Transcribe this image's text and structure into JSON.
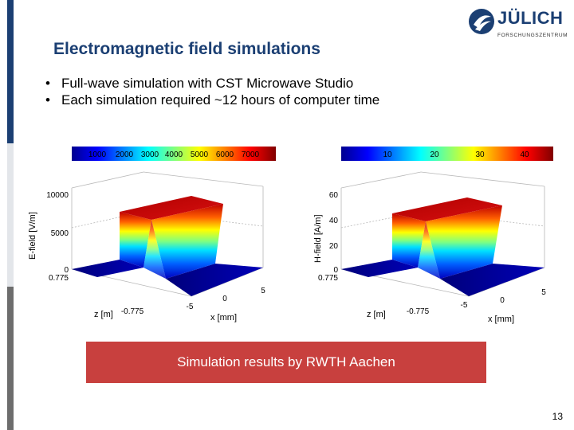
{
  "slide": {
    "title": "Electromagnetic field simulations",
    "bullets": [
      "Full-wave simulation with CST Microwave Studio",
      "Each simulation required ~12 hours of computer time"
    ],
    "banner": "Simulation results by RWTH Aachen",
    "page_number": "13"
  },
  "logo": {
    "name": "JÜLICH",
    "subtitle": "FORSCHUNGSZENTRUM"
  },
  "plots": [
    {
      "colorbar_ticks": [
        "1000",
        "2000",
        "3000",
        "4000",
        "5000",
        "6000",
        "7000"
      ],
      "ylabel": "E-field [V/m]",
      "y_ticks": [
        "10000",
        "5000",
        "0"
      ],
      "z_label": "z [m]",
      "z_ticks": [
        "0.775",
        "-0.775"
      ],
      "x_label": "x [mm]",
      "x_ticks": [
        "-5",
        "0",
        "5"
      ]
    },
    {
      "colorbar_ticks": [
        "10",
        "20",
        "30",
        "40"
      ],
      "ylabel": "H-field [A/m]",
      "y_ticks": [
        "60",
        "40",
        "20",
        "0"
      ],
      "z_label": "z [m]",
      "z_ticks": [
        "0.775",
        "-0.775"
      ],
      "x_label": "x [mm]",
      "x_ticks": [
        "-5",
        "0",
        "5"
      ]
    }
  ],
  "colors": {
    "title": "#1b3f73",
    "banner": "#c8403e",
    "side_bar_top": "#1b3f73",
    "side_bar_bottom": "#6d6d6d"
  }
}
